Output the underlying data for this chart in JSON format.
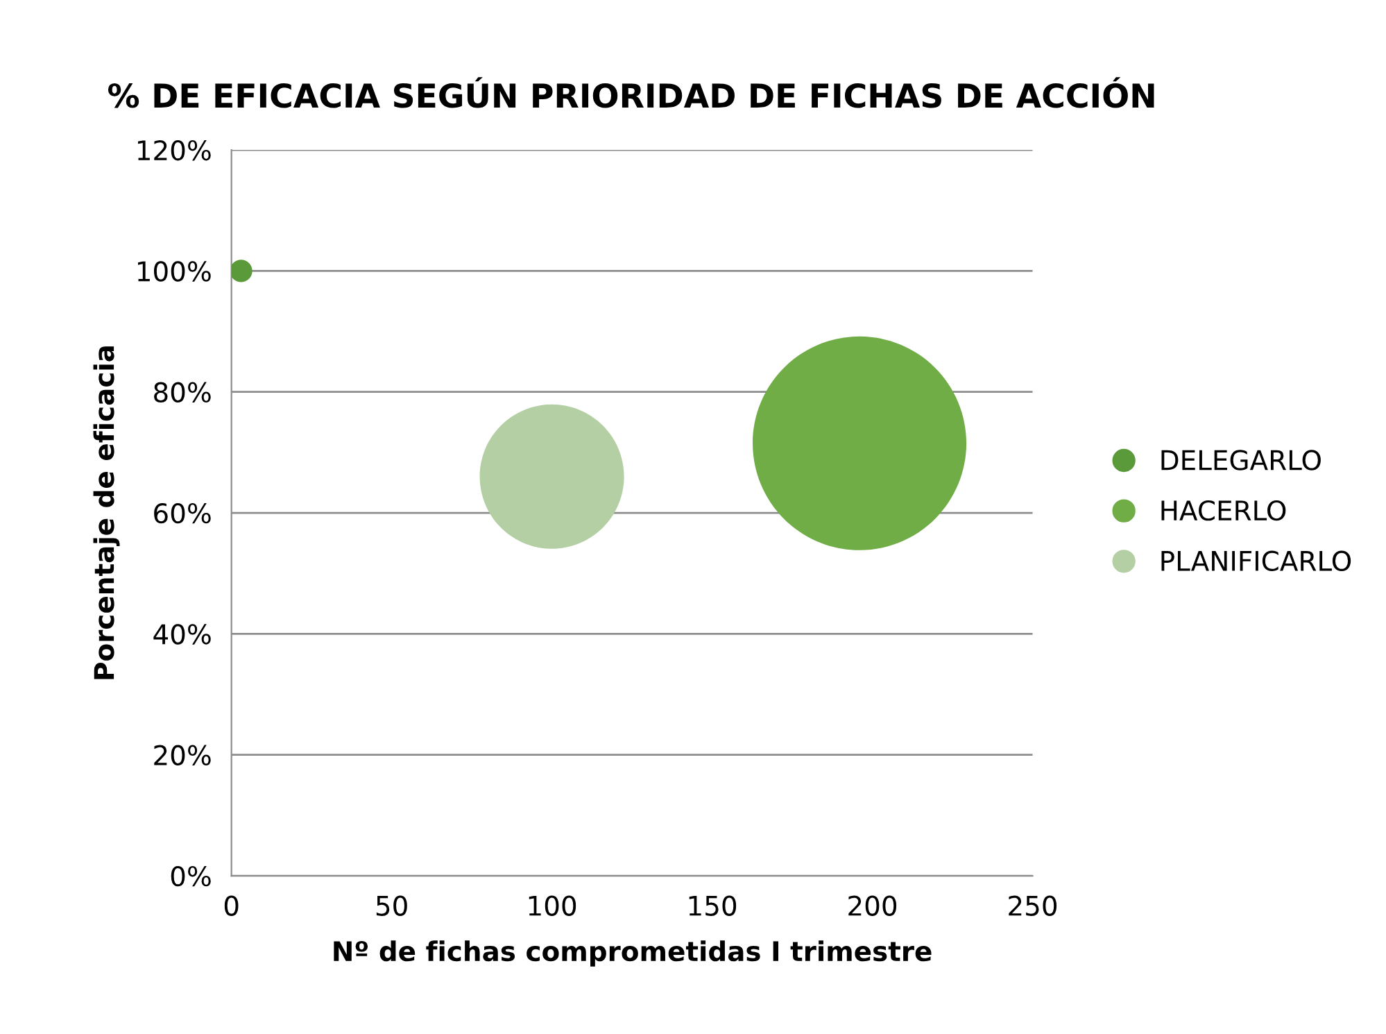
{
  "chart_data": {
    "type": "bubble",
    "title": "% DE EFICACIA SEGÚN PRIORIDAD DE FICHAS DE ACCIÓN",
    "xlabel": "Nº de fichas comprometidas I trimestre",
    "ylabel": "Porcentaje de eficacia",
    "series": [
      {
        "name": "DELEGARLO",
        "color": "#5a9a3a",
        "x": [
          3
        ],
        "values": [
          100
        ],
        "sizes": [
          0.011
        ]
      },
      {
        "name": "HACERLO",
        "color": "#70ad47",
        "x": [
          196
        ],
        "values": [
          71.5
        ],
        "sizes": [
          1
        ]
      },
      {
        "name": "PLANIFICARLO",
        "color": "#b5cfa5",
        "x": [
          100
        ],
        "values": [
          66
        ],
        "sizes": [
          0.456
        ]
      }
    ],
    "xlim": [
      0,
      250
    ],
    "xticks": [
      0,
      50,
      100,
      150,
      200,
      250
    ],
    "ylim": [
      0,
      120
    ],
    "yticks": [
      {
        "value": 0,
        "label": "0%"
      },
      {
        "value": 20,
        "label": "20%"
      },
      {
        "value": 40,
        "label": "40%"
      },
      {
        "value": 60,
        "label": "60%"
      },
      {
        "value": 80,
        "label": "80%"
      },
      {
        "value": 100,
        "label": "100%"
      },
      {
        "value": 120,
        "label": "120%"
      }
    ],
    "grid": "y",
    "legend": "right"
  }
}
